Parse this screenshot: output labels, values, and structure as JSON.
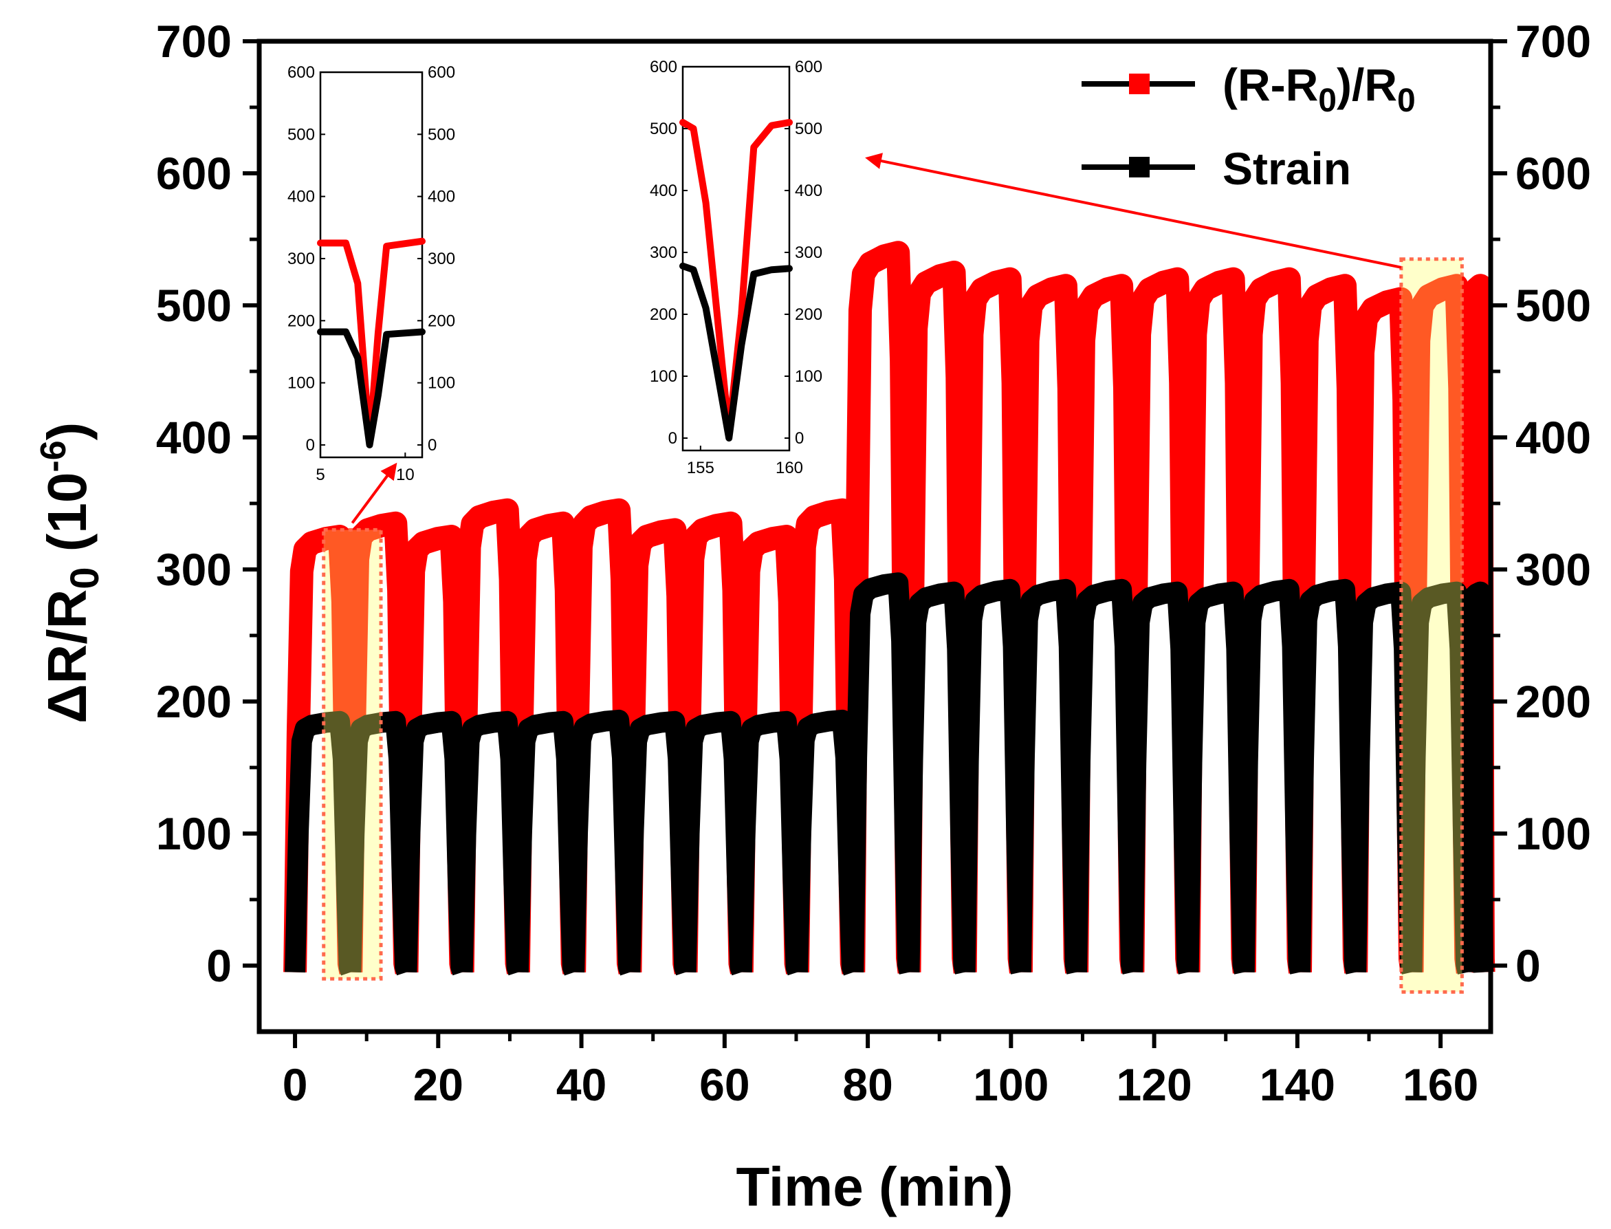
{
  "chart_data": {
    "type": "line",
    "title": "",
    "xlabel": "Time (min)",
    "ylabel": "ΔR/R0 (10-6)",
    "ylabel_parts": {
      "delta": "ΔR/R",
      "sub": "0",
      "unit_open": " (10",
      "sup": "-6",
      "unit_close": ")"
    },
    "xlim": [
      -5,
      167
    ],
    "ylim": [
      -50,
      700
    ],
    "x_ticks": [
      0,
      20,
      40,
      60,
      80,
      100,
      120,
      140,
      160
    ],
    "y_ticks": [
      0,
      100,
      200,
      300,
      400,
      500,
      600,
      700
    ],
    "x_tick_labels": [
      "0",
      "20",
      "40",
      "60",
      "80",
      "100",
      "120",
      "140",
      "160"
    ],
    "y_tick_labels": [
      "0",
      "100",
      "200",
      "300",
      "400",
      "500",
      "600",
      "700"
    ],
    "right_y_tick_labels": [
      "0",
      "100",
      "200",
      "300",
      "400",
      "500",
      "600",
      "700"
    ],
    "legend": [
      {
        "name": "(R-R0)/R0",
        "label_main": "(R-R",
        "label_sub": "0",
        "label_tail": ")/R",
        "label_sub2": "0",
        "color": "#ff0000"
      },
      {
        "name": "Strain",
        "label_main": "Strain",
        "color": "#000000"
      }
    ],
    "legend_position": "top-right",
    "cycle_period_min": 7.8,
    "series": [
      {
        "name": "(R-R0)/R0",
        "color": "#ff0000",
        "cycle_start_times": [
          0,
          7.8,
          15.6,
          23.4,
          31.2,
          39,
          46.8,
          54.6,
          62.4,
          70.2,
          78,
          85.8,
          93.6,
          101.4,
          109.2,
          117,
          124.8,
          132.6,
          140.4,
          148.2,
          156,
          163.8
        ],
        "cycle_peaks": [
          325,
          335,
          325,
          345,
          335,
          345,
          330,
          335,
          325,
          345,
          540,
          525,
          520,
          515,
          515,
          520,
          520,
          520,
          515,
          505,
          515,
          515
        ]
      },
      {
        "name": "Strain",
        "color": "#000000",
        "cycle_start_times": [
          0,
          7.8,
          15.6,
          23.4,
          31.2,
          39,
          46.8,
          54.6,
          62.4,
          70.2,
          78,
          85.8,
          93.6,
          101.4,
          109.2,
          117,
          124.8,
          132.6,
          140.4,
          148.2,
          156,
          163.8
        ],
        "cycle_peaks": [
          185,
          185,
          185,
          185,
          185,
          186,
          185,
          185,
          185,
          186,
          290,
          283,
          285,
          285,
          285,
          283,
          283,
          285,
          285,
          283,
          283,
          283
        ]
      }
    ],
    "highlight_regions": [
      {
        "x_range": [
          4,
          12
        ],
        "y_range": [
          -10,
          330
        ]
      },
      {
        "x_range": [
          154.5,
          163
        ],
        "y_range": [
          -20,
          535
        ]
      }
    ],
    "insets": [
      {
        "id": "inset-left",
        "xlim": [
          5,
          11
        ],
        "ylim": [
          -20,
          600
        ],
        "x_ticks": [
          5,
          10
        ],
        "x_tick_labels": [
          "5",
          "10"
        ],
        "y_ticks": [
          0,
          100,
          200,
          300,
          400,
          500,
          600
        ],
        "y_tick_labels": [
          "0",
          "100",
          "200",
          "300",
          "400",
          "500",
          "600"
        ],
        "series": [
          {
            "name": "(R-R0)/R0",
            "color": "#ff0000",
            "x": [
              5,
              6.5,
              7.2,
              7.9,
              8.4,
              8.9,
              11
            ],
            "y": [
              325,
              325,
              260,
              5,
              180,
              320,
              328
            ]
          },
          {
            "name": "Strain",
            "color": "#000000",
            "x": [
              5,
              6.5,
              7.2,
              7.9,
              8.4,
              8.9,
              11
            ],
            "y": [
              182,
              182,
              140,
              0,
              80,
              178,
              182
            ]
          }
        ]
      },
      {
        "id": "inset-right",
        "xlim": [
          154,
          160
        ],
        "ylim": [
          -20,
          600
        ],
        "x_ticks": [
          155,
          160
        ],
        "x_tick_labels": [
          "155",
          "160"
        ],
        "y_ticks": [
          0,
          100,
          200,
          300,
          400,
          500,
          600
        ],
        "y_tick_labels": [
          "0",
          "100",
          "200",
          "300",
          "400",
          "500",
          "600"
        ],
        "series": [
          {
            "name": "(R-R0)/R0",
            "color": "#ff0000",
            "x": [
              154,
              154.6,
              155.3,
              156.6,
              157.3,
              158,
              159,
              160
            ],
            "y": [
              510,
              500,
              380,
              10,
              200,
              470,
              505,
              510
            ]
          },
          {
            "name": "Strain",
            "color": "#000000",
            "x": [
              154,
              154.6,
              155.3,
              156.6,
              157.3,
              158,
              159,
              160
            ],
            "y": [
              278,
              272,
              210,
              0,
              150,
              265,
              272,
              274
            ]
          }
        ]
      }
    ]
  }
}
